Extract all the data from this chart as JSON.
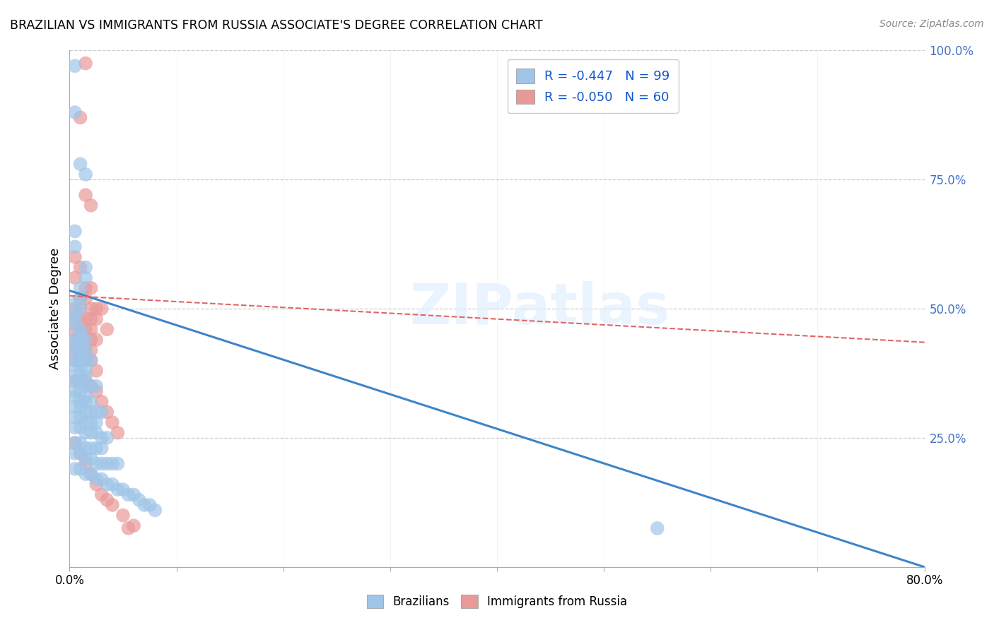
{
  "title": "BRAZILIAN VS IMMIGRANTS FROM RUSSIA ASSOCIATE'S DEGREE CORRELATION CHART",
  "source": "Source: ZipAtlas.com",
  "ylabel": "Associate's Degree",
  "right_ytick_vals": [
    1.0,
    0.75,
    0.5,
    0.25
  ],
  "right_ytick_labels": [
    "100.0%",
    "75.0%",
    "50.0%",
    "25.0%"
  ],
  "legend_r1": "R = -0.447   N = 99",
  "legend_r2": "R = -0.050   N = 60",
  "blue_color": "#9fc5e8",
  "pink_color": "#ea9999",
  "blue_line_color": "#3d85c8",
  "pink_line_color": "#e06666",
  "background_color": "#ffffff",
  "watermark_text": "ZIPatlas",
  "x_range": [
    0.0,
    0.8
  ],
  "y_range": [
    0.0,
    1.0
  ],
  "blue_trend_x": [
    0.0,
    0.8
  ],
  "blue_trend_y": [
    0.535,
    0.0
  ],
  "pink_trend_x": [
    0.0,
    0.8
  ],
  "pink_trend_y": [
    0.525,
    0.435
  ],
  "blue_scatter": [
    [
      0.005,
      0.97
    ],
    [
      0.005,
      0.88
    ],
    [
      0.01,
      0.78
    ],
    [
      0.015,
      0.76
    ],
    [
      0.005,
      0.65
    ],
    [
      0.005,
      0.62
    ],
    [
      0.015,
      0.58
    ],
    [
      0.015,
      0.56
    ],
    [
      0.01,
      0.54
    ],
    [
      0.01,
      0.52
    ],
    [
      0.005,
      0.51
    ],
    [
      0.01,
      0.5
    ],
    [
      0.005,
      0.49
    ],
    [
      0.005,
      0.48
    ],
    [
      0.005,
      0.47
    ],
    [
      0.01,
      0.46
    ],
    [
      0.01,
      0.45
    ],
    [
      0.005,
      0.44
    ],
    [
      0.01,
      0.44
    ],
    [
      0.015,
      0.44
    ],
    [
      0.005,
      0.43
    ],
    [
      0.01,
      0.43
    ],
    [
      0.015,
      0.42
    ],
    [
      0.005,
      0.42
    ],
    [
      0.01,
      0.41
    ],
    [
      0.015,
      0.41
    ],
    [
      0.005,
      0.4
    ],
    [
      0.01,
      0.4
    ],
    [
      0.015,
      0.4
    ],
    [
      0.02,
      0.4
    ],
    [
      0.005,
      0.39
    ],
    [
      0.01,
      0.39
    ],
    [
      0.015,
      0.38
    ],
    [
      0.005,
      0.37
    ],
    [
      0.01,
      0.37
    ],
    [
      0.015,
      0.37
    ],
    [
      0.005,
      0.36
    ],
    [
      0.01,
      0.36
    ],
    [
      0.015,
      0.35
    ],
    [
      0.02,
      0.35
    ],
    [
      0.025,
      0.35
    ],
    [
      0.005,
      0.34
    ],
    [
      0.01,
      0.34
    ],
    [
      0.015,
      0.33
    ],
    [
      0.005,
      0.33
    ],
    [
      0.01,
      0.32
    ],
    [
      0.015,
      0.32
    ],
    [
      0.02,
      0.32
    ],
    [
      0.005,
      0.31
    ],
    [
      0.01,
      0.31
    ],
    [
      0.015,
      0.3
    ],
    [
      0.02,
      0.3
    ],
    [
      0.025,
      0.3
    ],
    [
      0.03,
      0.3
    ],
    [
      0.005,
      0.29
    ],
    [
      0.01,
      0.29
    ],
    [
      0.015,
      0.28
    ],
    [
      0.02,
      0.28
    ],
    [
      0.025,
      0.28
    ],
    [
      0.005,
      0.27
    ],
    [
      0.01,
      0.27
    ],
    [
      0.015,
      0.26
    ],
    [
      0.02,
      0.26
    ],
    [
      0.025,
      0.26
    ],
    [
      0.03,
      0.25
    ],
    [
      0.035,
      0.25
    ],
    [
      0.005,
      0.24
    ],
    [
      0.01,
      0.24
    ],
    [
      0.015,
      0.23
    ],
    [
      0.02,
      0.23
    ],
    [
      0.025,
      0.23
    ],
    [
      0.03,
      0.23
    ],
    [
      0.005,
      0.22
    ],
    [
      0.01,
      0.22
    ],
    [
      0.015,
      0.21
    ],
    [
      0.02,
      0.21
    ],
    [
      0.025,
      0.2
    ],
    [
      0.03,
      0.2
    ],
    [
      0.035,
      0.2
    ],
    [
      0.04,
      0.2
    ],
    [
      0.045,
      0.2
    ],
    [
      0.005,
      0.19
    ],
    [
      0.01,
      0.19
    ],
    [
      0.015,
      0.18
    ],
    [
      0.02,
      0.18
    ],
    [
      0.025,
      0.17
    ],
    [
      0.03,
      0.17
    ],
    [
      0.035,
      0.16
    ],
    [
      0.04,
      0.16
    ],
    [
      0.045,
      0.15
    ],
    [
      0.05,
      0.15
    ],
    [
      0.055,
      0.14
    ],
    [
      0.06,
      0.14
    ],
    [
      0.065,
      0.13
    ],
    [
      0.07,
      0.12
    ],
    [
      0.075,
      0.12
    ],
    [
      0.08,
      0.11
    ],
    [
      0.55,
      0.075
    ]
  ],
  "pink_scatter": [
    [
      0.015,
      0.975
    ],
    [
      0.01,
      0.87
    ],
    [
      0.015,
      0.72
    ],
    [
      0.02,
      0.7
    ],
    [
      0.005,
      0.6
    ],
    [
      0.01,
      0.58
    ],
    [
      0.005,
      0.56
    ],
    [
      0.015,
      0.54
    ],
    [
      0.02,
      0.54
    ],
    [
      0.01,
      0.52
    ],
    [
      0.015,
      0.52
    ],
    [
      0.005,
      0.5
    ],
    [
      0.01,
      0.5
    ],
    [
      0.02,
      0.5
    ],
    [
      0.025,
      0.5
    ],
    [
      0.03,
      0.5
    ],
    [
      0.005,
      0.48
    ],
    [
      0.01,
      0.48
    ],
    [
      0.015,
      0.48
    ],
    [
      0.02,
      0.48
    ],
    [
      0.025,
      0.48
    ],
    [
      0.005,
      0.46
    ],
    [
      0.01,
      0.46
    ],
    [
      0.015,
      0.46
    ],
    [
      0.02,
      0.46
    ],
    [
      0.035,
      0.46
    ],
    [
      0.005,
      0.44
    ],
    [
      0.01,
      0.44
    ],
    [
      0.015,
      0.44
    ],
    [
      0.02,
      0.44
    ],
    [
      0.025,
      0.44
    ],
    [
      0.005,
      0.42
    ],
    [
      0.01,
      0.42
    ],
    [
      0.015,
      0.42
    ],
    [
      0.02,
      0.42
    ],
    [
      0.005,
      0.4
    ],
    [
      0.01,
      0.4
    ],
    [
      0.015,
      0.4
    ],
    [
      0.02,
      0.4
    ],
    [
      0.025,
      0.38
    ],
    [
      0.005,
      0.36
    ],
    [
      0.01,
      0.36
    ],
    [
      0.015,
      0.36
    ],
    [
      0.02,
      0.35
    ],
    [
      0.025,
      0.34
    ],
    [
      0.03,
      0.32
    ],
    [
      0.035,
      0.3
    ],
    [
      0.04,
      0.28
    ],
    [
      0.045,
      0.26
    ],
    [
      0.005,
      0.24
    ],
    [
      0.01,
      0.22
    ],
    [
      0.015,
      0.2
    ],
    [
      0.02,
      0.18
    ],
    [
      0.025,
      0.16
    ],
    [
      0.03,
      0.14
    ],
    [
      0.035,
      0.13
    ],
    [
      0.04,
      0.12
    ],
    [
      0.05,
      0.1
    ],
    [
      0.06,
      0.08
    ],
    [
      0.055,
      0.075
    ]
  ]
}
